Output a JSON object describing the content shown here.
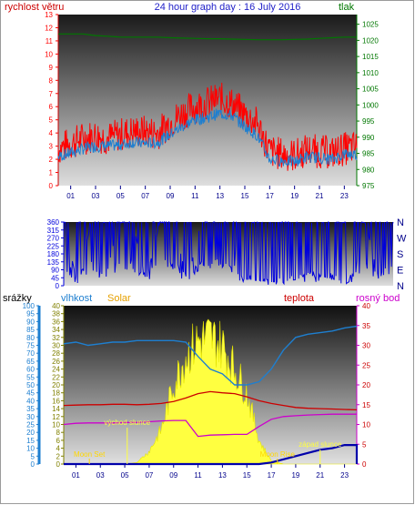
{
  "title": "24 hour graph day : 16 July 2016",
  "colors": {
    "wind": "#ff0000",
    "gust": "#1e7fd0",
    "pressure": "#007700",
    "direction": "#0000dd",
    "humidity": "#1e7fd0",
    "solar": "#ffff40",
    "temperature": "#cc0000",
    "dewpoint": "#cc00cc",
    "rain": "#0000aa",
    "moon": "#ffd700"
  },
  "x_ticks": [
    "01",
    "03",
    "05",
    "07",
    "09",
    "11",
    "13",
    "15",
    "17",
    "19",
    "21",
    "23"
  ],
  "chart_data": [
    {
      "type": "line",
      "name": "wind-pressure",
      "ylabel_left": "rychlost větru",
      "ylabel_right": "tlak",
      "ylim_left": [
        0,
        13
      ],
      "ylim_right": [
        975,
        1028
      ],
      "left_ticks": [
        0,
        1,
        2,
        3,
        4,
        5,
        6,
        7,
        8,
        9,
        10,
        11,
        12,
        13
      ],
      "right_ticks": [
        975,
        980,
        985,
        990,
        995,
        1000,
        1005,
        1010,
        1015,
        1020,
        1025
      ],
      "x": [
        0,
        1,
        2,
        3,
        4,
        5,
        6,
        7,
        8,
        9,
        10,
        11,
        12,
        13,
        14,
        15,
        16,
        17,
        18,
        19,
        20,
        21,
        22,
        23,
        24
      ],
      "series": [
        {
          "key": "wind",
          "values": [
            2.8,
            3.2,
            3.6,
            3.8,
            3.6,
            3.9,
            4.1,
            4.1,
            4.0,
            4.8,
            5.5,
            6.0,
            6.3,
            6.6,
            6.2,
            5.4,
            4.7,
            2.6,
            2.4,
            2.3,
            2.7,
            2.6,
            2.5,
            2.8,
            2.9
          ]
        },
        {
          "key": "gust",
          "values": [
            2.2,
            2.5,
            2.8,
            3.0,
            3.0,
            3.1,
            3.3,
            3.2,
            3.3,
            3.9,
            4.5,
            5.0,
            5.2,
            5.5,
            5.3,
            4.5,
            3.8,
            2.0,
            1.9,
            1.8,
            2.2,
            2.1,
            2.0,
            2.4,
            2.4
          ]
        },
        {
          "key": "pressure",
          "values": [
            1022,
            1022,
            1022,
            1021.5,
            1021.3,
            1021,
            1021,
            1021,
            1021,
            1020.8,
            1020.7,
            1020.6,
            1020.5,
            1020.5,
            1020.4,
            1020.3,
            1020.2,
            1020.2,
            1020.2,
            1020.3,
            1020.4,
            1020.6,
            1020.8,
            1021,
            1021
          ]
        }
      ]
    },
    {
      "type": "line",
      "name": "wind-direction",
      "ylim_left": [
        0,
        360
      ],
      "left_ticks": [
        0,
        45,
        90,
        135,
        180,
        225,
        270,
        315,
        360
      ],
      "right_labels": [
        "N",
        "W",
        "S",
        "E",
        "N"
      ],
      "x": [
        0,
        1,
        2,
        3,
        4,
        5,
        6,
        7,
        8,
        9,
        10,
        11,
        12,
        13,
        14,
        15,
        16,
        17,
        18,
        19,
        20,
        21,
        22,
        23,
        24
      ],
      "series": [
        {
          "key": "direction",
          "values": [
            360,
            10,
            360,
            20,
            360,
            360,
            30,
            360,
            360,
            20,
            360,
            360,
            350,
            40,
            30,
            20,
            25,
            35,
            80,
            50,
            30,
            20,
            360,
            15,
            360
          ]
        }
      ]
    },
    {
      "type": "line",
      "name": "rain-humidity-solar-temp",
      "ylabel_rain": "srážky",
      "ylabel_humidity": "vlhkost",
      "ylabel_solar": "Solar",
      "ylabel_temp": "teplota",
      "ylabel_dew": "rosný bod",
      "ylim_rain": [
        0,
        100
      ],
      "ylim_temp": [
        0,
        40
      ],
      "rain_ticks": [
        0,
        5,
        10,
        15,
        20,
        25,
        30,
        35,
        40,
        45,
        50,
        55,
        60,
        65,
        70,
        75,
        80,
        85,
        90,
        95,
        100
      ],
      "humidity_ticks": [
        0,
        2,
        4,
        6,
        8,
        10,
        12,
        14,
        16,
        18,
        20,
        22,
        24,
        26,
        28,
        30,
        32,
        34,
        36,
        38,
        40
      ],
      "temp_ticks": [
        0,
        5,
        10,
        15,
        20,
        25,
        30,
        35,
        40
      ],
      "x": [
        0,
        1,
        2,
        3,
        4,
        5,
        6,
        7,
        8,
        9,
        10,
        11,
        12,
        13,
        14,
        15,
        16,
        17,
        18,
        19,
        20,
        21,
        22,
        23,
        24
      ],
      "series": [
        {
          "key": "humidity",
          "values": [
            76,
            77,
            75,
            76,
            77,
            77,
            78,
            78,
            78,
            78,
            77,
            68,
            60,
            57,
            50,
            50,
            52,
            60,
            72,
            80,
            82,
            83,
            84,
            86,
            87
          ]
        },
        {
          "key": "temperature",
          "values": [
            14.8,
            14.9,
            15.0,
            15.0,
            15.1,
            15.1,
            15.0,
            15.1,
            15.3,
            15.8,
            16.7,
            17.8,
            18.3,
            18.0,
            17.8,
            17.0,
            16.0,
            15.3,
            14.8,
            14.3,
            14.1,
            14.0,
            13.9,
            13.8,
            13.7
          ]
        },
        {
          "key": "dewpoint",
          "values": [
            10.0,
            10.3,
            10.4,
            10.4,
            10.4,
            10.5,
            10.5,
            10.7,
            10.9,
            11.0,
            11.0,
            7.0,
            7.3,
            7.4,
            7.5,
            7.5,
            9.5,
            11.3,
            12.0,
            12.2,
            12.4,
            12.5,
            12.6,
            12.6,
            12.6
          ]
        },
        {
          "key": "rain",
          "values": [
            0,
            0,
            0,
            0,
            0,
            0,
            0,
            0,
            0,
            0,
            0,
            0,
            0,
            0,
            0,
            0,
            0,
            1,
            3,
            5,
            7,
            9,
            10,
            12,
            12
          ]
        },
        {
          "key": "solar",
          "values": [
            0,
            0,
            0,
            0,
            0,
            0,
            1,
            8,
            22,
            50,
            68,
            78,
            80,
            75,
            60,
            45,
            15,
            2,
            0,
            0,
            0,
            0,
            0,
            0,
            0
          ]
        }
      ],
      "annotations": {
        "sunrise": "východ slunce",
        "sunset": "západ slunce",
        "moonset": "Moon Set",
        "moonrise": "Moon Rise"
      }
    }
  ]
}
